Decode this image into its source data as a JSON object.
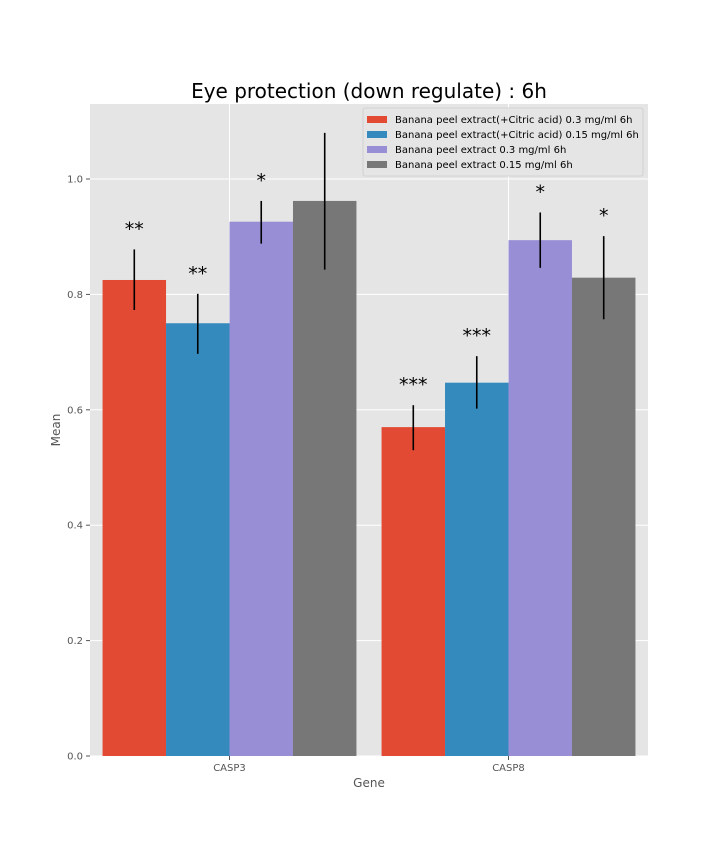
{
  "chart_data": {
    "type": "bar",
    "title": "Eye protection (down regulate) : 6h",
    "xlabel": "Gene",
    "ylabel": "Mean",
    "categories": [
      "CASP3",
      "CASP8"
    ],
    "ylim": [
      0,
      1.13
    ],
    "yticks": [
      "0.0",
      "0.2",
      "0.4",
      "0.6",
      "0.8",
      "1.0"
    ],
    "grid": true,
    "legend_position": "top-right",
    "series": [
      {
        "name": "Banana peel extract(+Citric acid) 0.3 mg/ml 6h",
        "color": "#E24A33",
        "values": [
          0.825,
          0.57
        ],
        "err_low": [
          0.773,
          0.53
        ],
        "err_high": [
          0.878,
          0.608
        ],
        "significance": [
          "**",
          "***"
        ]
      },
      {
        "name": "Banana peel extract(+Citric acid) 0.15 mg/ml 6h",
        "color": "#348ABD",
        "values": [
          0.75,
          0.647
        ],
        "err_low": [
          0.697,
          0.602
        ],
        "err_high": [
          0.801,
          0.693
        ],
        "significance": [
          "**",
          "***"
        ]
      },
      {
        "name": "Banana peel extract 0.3 mg/ml 6h",
        "color": "#988ED5",
        "values": [
          0.926,
          0.894
        ],
        "err_low": [
          0.888,
          0.846
        ],
        "err_high": [
          0.962,
          0.942
        ],
        "significance": [
          "*",
          "*"
        ]
      },
      {
        "name": "Banana peel extract 0.15 mg/ml 6h",
        "color": "#777777",
        "values": [
          0.962,
          0.829
        ],
        "err_low": [
          0.843,
          0.757
        ],
        "err_high": [
          1.08,
          0.901
        ],
        "significance": [
          "",
          "*"
        ]
      }
    ]
  }
}
